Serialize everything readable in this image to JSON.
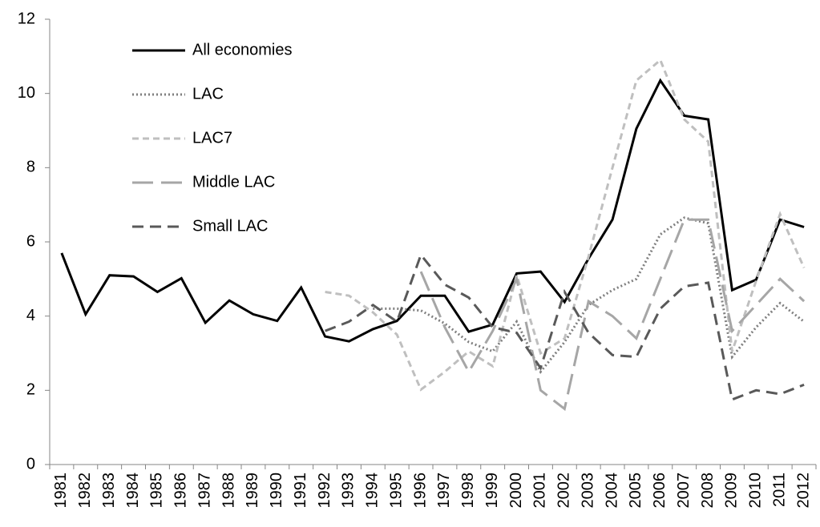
{
  "chart_data": {
    "type": "line",
    "categories": [
      "1981",
      "1982",
      "1983",
      "1984",
      "1985",
      "1986",
      "1987",
      "1988",
      "1989",
      "1990",
      "1991",
      "1992",
      "1993",
      "1994",
      "1995",
      "1996",
      "1997",
      "1998",
      "1999",
      "2000",
      "2001",
      "2002",
      "2003",
      "2004",
      "2005",
      "2006",
      "2007",
      "2008",
      "2009",
      "2010",
      "2011",
      "2012"
    ],
    "ylim": [
      0,
      12
    ],
    "yticks": [
      0,
      2,
      4,
      6,
      8,
      10,
      12
    ],
    "grid": false,
    "legend": "upper-left",
    "series": [
      {
        "name": "All economies",
        "color": "#000000",
        "dash": "solid",
        "values": [
          5.7,
          4.05,
          5.1,
          5.07,
          4.65,
          5.02,
          3.82,
          4.42,
          4.05,
          3.87,
          4.77,
          3.45,
          3.32,
          3.65,
          3.87,
          4.55,
          4.55,
          3.58,
          3.77,
          5.15,
          5.2,
          4.38,
          5.55,
          6.6,
          9.05,
          10.35,
          9.4,
          9.3,
          4.7,
          4.98,
          6.6,
          6.4
        ]
      },
      {
        "name": "LAC",
        "color": "#7f7f7f",
        "dash": "dotted",
        "values": [
          null,
          null,
          null,
          null,
          null,
          null,
          null,
          null,
          null,
          null,
          null,
          null,
          null,
          4.2,
          4.2,
          4.15,
          3.8,
          3.3,
          3.05,
          3.85,
          2.5,
          3.3,
          4.3,
          4.7,
          5.0,
          6.2,
          6.65,
          6.5,
          2.9,
          3.7,
          4.35,
          3.85
        ]
      },
      {
        "name": "LAC7",
        "color": "#bfbfbf",
        "dash": "short-dash",
        "values": [
          null,
          null,
          null,
          null,
          null,
          null,
          null,
          null,
          null,
          null,
          null,
          4.65,
          4.55,
          4.1,
          3.5,
          2.02,
          2.5,
          3.05,
          2.65,
          5.1,
          3.0,
          3.4,
          5.6,
          8.0,
          10.35,
          10.9,
          9.3,
          8.7,
          3.05,
          4.95,
          6.75,
          5.3
        ]
      },
      {
        "name": "Middle LAC",
        "color": "#a6a6a6",
        "dash": "long-dash",
        "values": [
          null,
          null,
          null,
          null,
          null,
          null,
          null,
          null,
          null,
          null,
          null,
          null,
          null,
          null,
          null,
          5.2,
          3.7,
          2.5,
          3.6,
          5.0,
          2.0,
          1.5,
          4.4,
          4.0,
          3.4,
          5.0,
          6.6,
          6.6,
          3.6,
          4.3,
          5.0,
          4.4
        ]
      },
      {
        "name": "Small LAC",
        "color": "#595959",
        "dash": "dash",
        "values": [
          null,
          null,
          null,
          null,
          null,
          null,
          null,
          null,
          null,
          null,
          null,
          3.6,
          3.85,
          4.3,
          3.85,
          5.65,
          4.85,
          4.5,
          3.7,
          3.55,
          2.6,
          4.65,
          3.55,
          2.95,
          2.9,
          4.2,
          4.8,
          4.9,
          1.75,
          2.0,
          1.9,
          2.15
        ]
      }
    ]
  }
}
